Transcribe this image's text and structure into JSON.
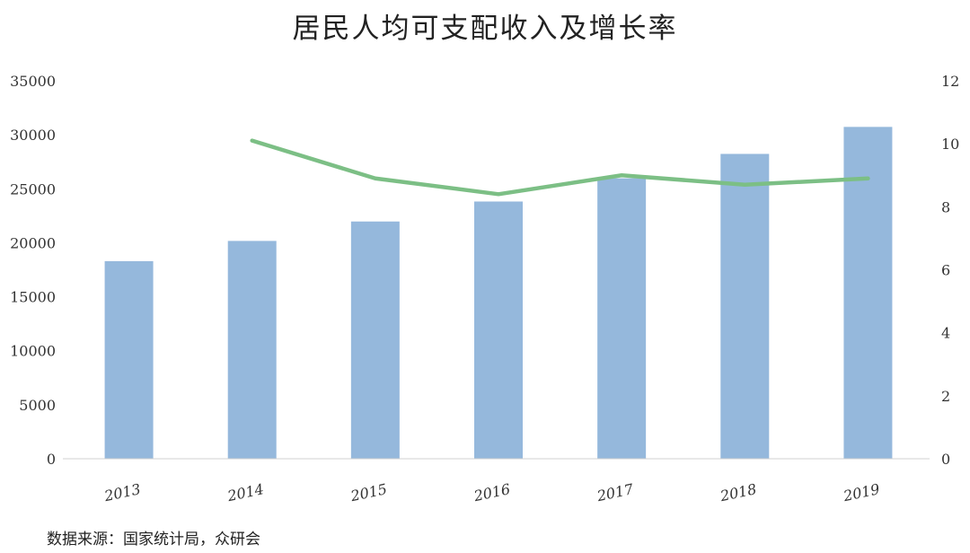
{
  "chart_data": {
    "type": "bar",
    "title": "居民人均可支配收入及增长率",
    "categories": [
      "2013",
      "2014",
      "2015",
      "2016",
      "2017",
      "2018",
      "2019"
    ],
    "series": [
      {
        "type": "bar",
        "axis": "left",
        "color": "#95b8dc",
        "values": [
          18300,
          20170,
          21970,
          23820,
          25970,
          28230,
          30730
        ]
      },
      {
        "type": "line",
        "axis": "right",
        "color": "#7cbf85",
        "values": [
          null,
          10.1,
          8.9,
          8.4,
          9.0,
          8.7,
          8.9
        ]
      }
    ],
    "y_left": {
      "min": 0,
      "max": 35000,
      "ticks": [
        "0",
        "5000",
        "10000",
        "15000",
        "20000",
        "25000",
        "30000",
        "35000"
      ]
    },
    "y_right": {
      "min": 0,
      "max": 12,
      "ticks": [
        "0",
        "2",
        "4",
        "6",
        "8",
        "10",
        "12"
      ]
    },
    "grid": false,
    "legend": "none"
  },
  "source_note": "数据来源：国家统计局，众研会"
}
